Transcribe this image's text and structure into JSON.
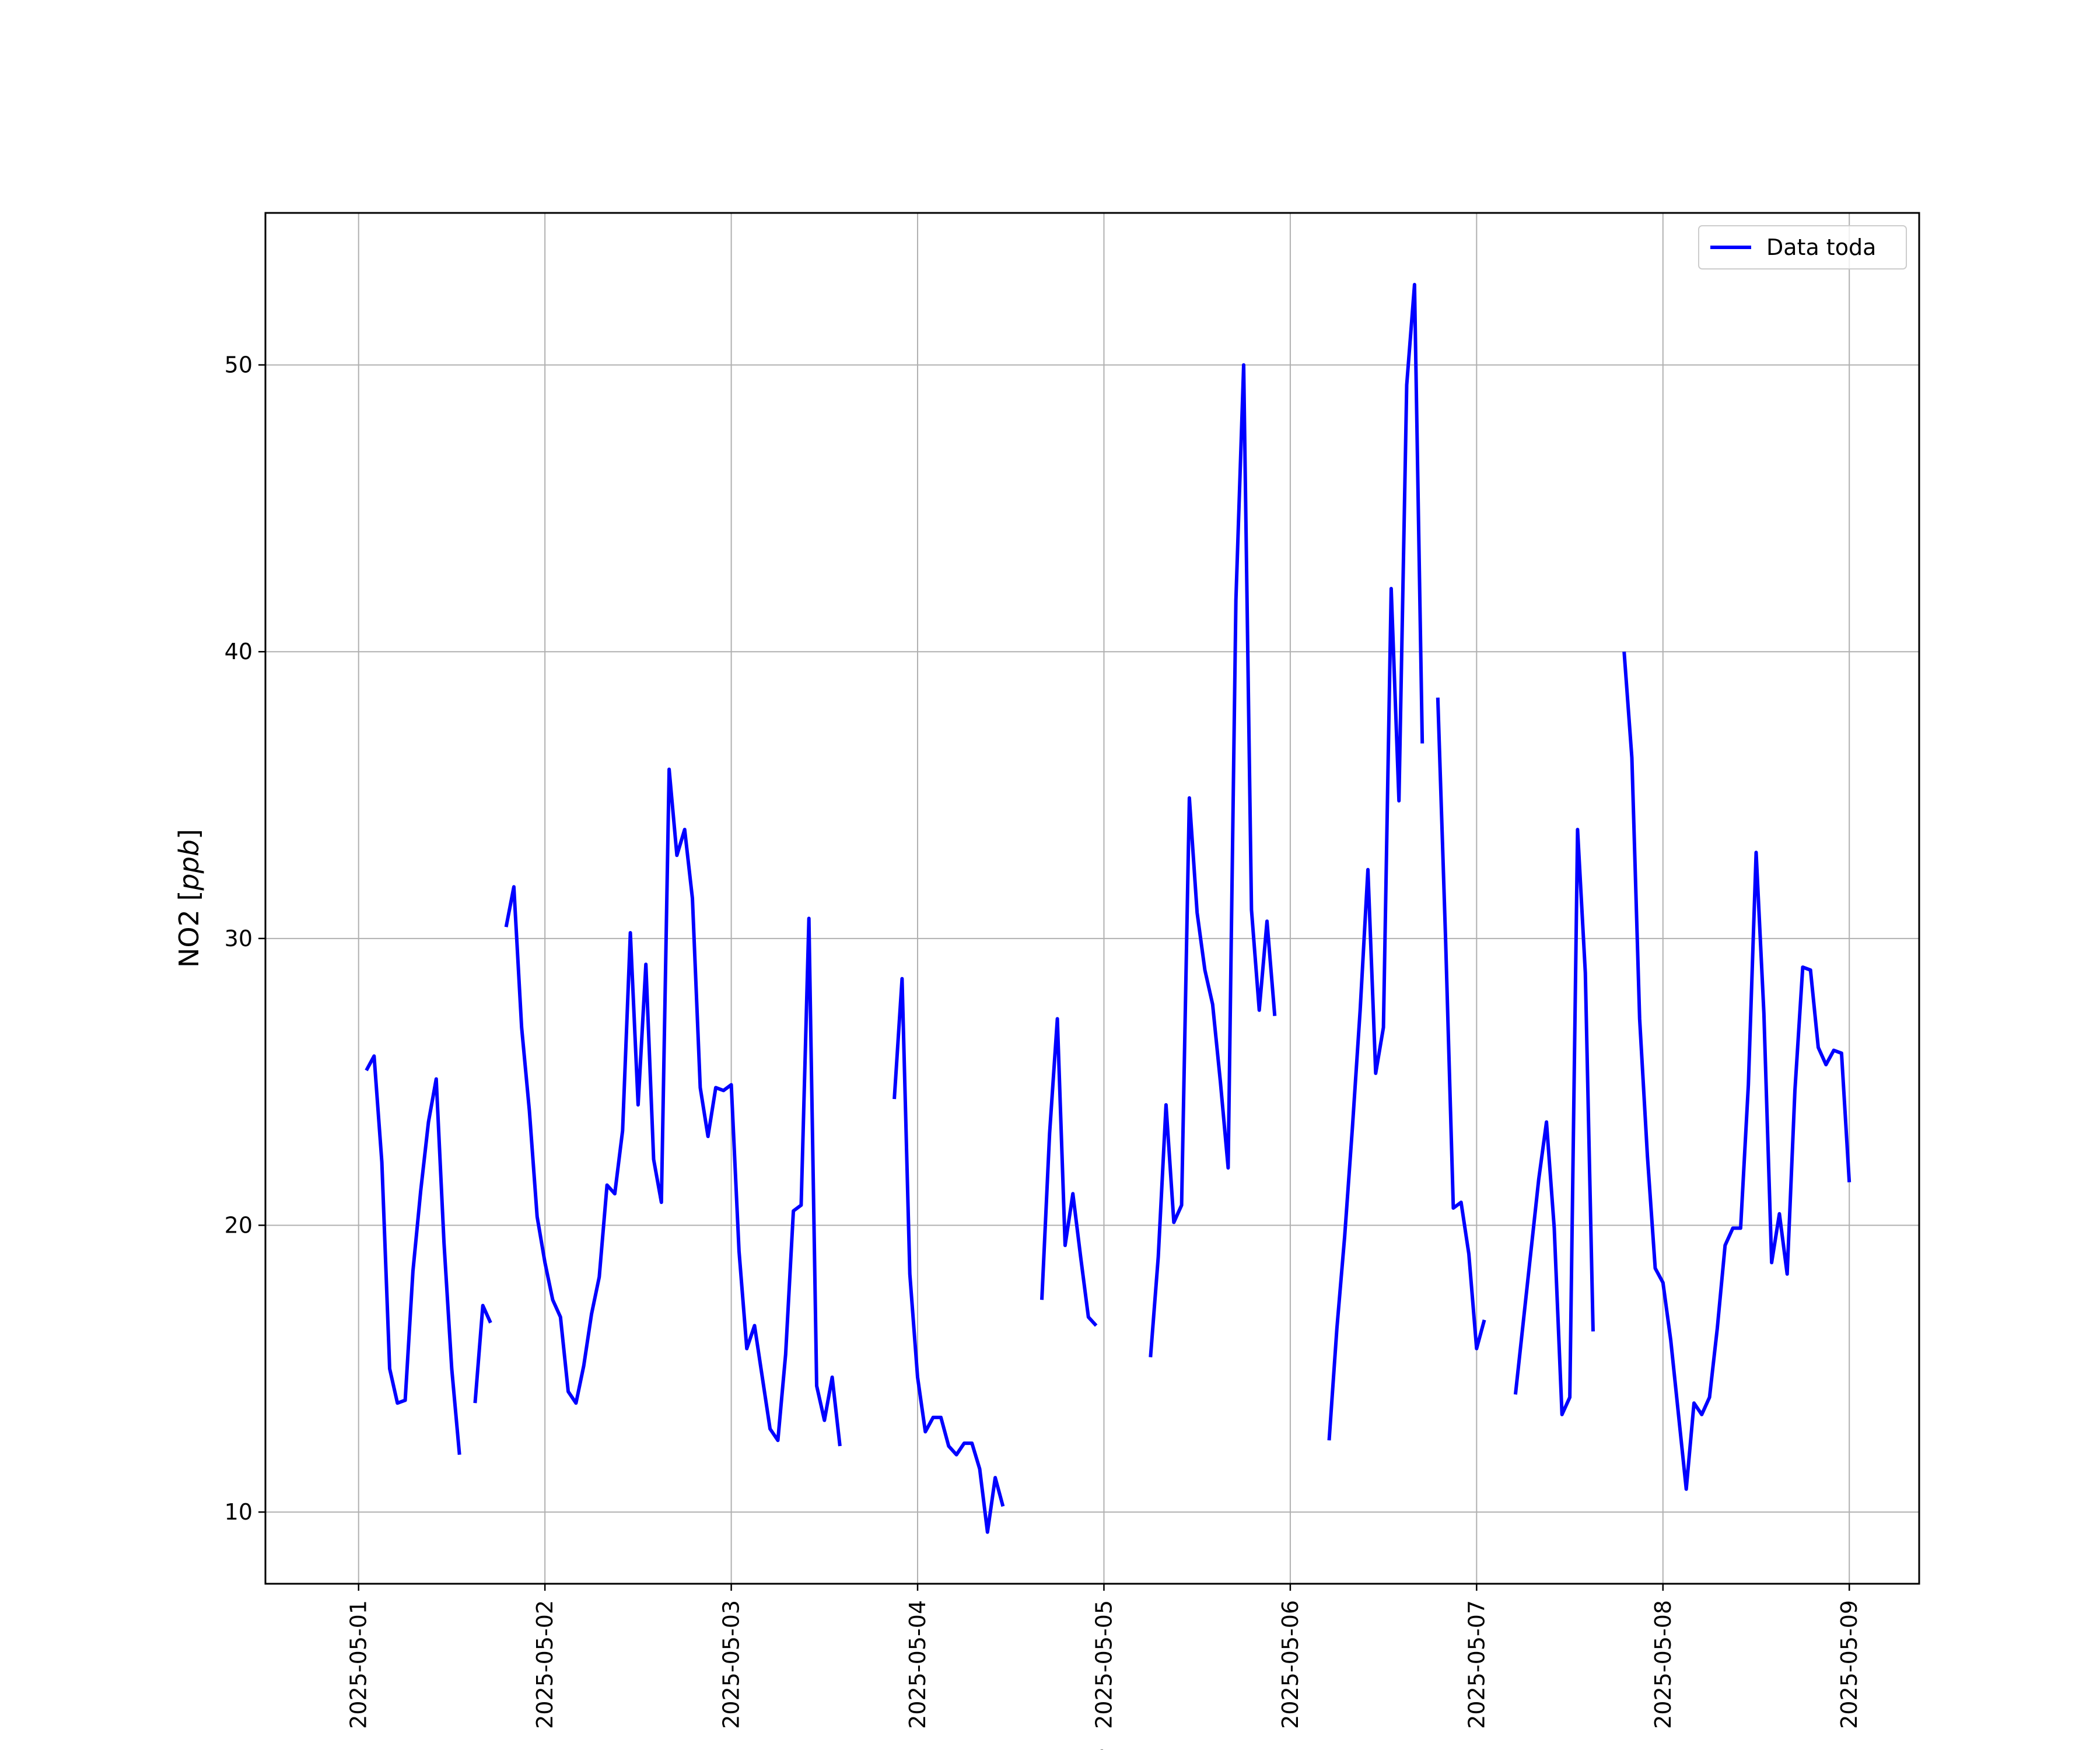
{
  "chart_data": {
    "type": "line",
    "title": "",
    "xlabel": "Fecha",
    "ylabel": "NO2 [ppb]",
    "ylabel_parts": {
      "plain": "NO2 [",
      "italic": "ppb",
      "close": "]"
    },
    "x_ticks": [
      "2025-05-01",
      "2025-05-02",
      "2025-05-03",
      "2025-05-04",
      "2025-05-05",
      "2025-05-06",
      "2025-05-07",
      "2025-05-08",
      "2025-05-09"
    ],
    "y_ticks": [
      10,
      20,
      30,
      40,
      50
    ],
    "xlim": [
      "2025-04-30T12:00",
      "2025-05-09T09:00"
    ],
    "ylim": [
      7.5,
      55.3
    ],
    "grid": true,
    "legend": {
      "position": "top-right",
      "entries": [
        "Data toda"
      ]
    },
    "series": [
      {
        "name": "Data toda",
        "color": "#0000ff",
        "time_step_hours": 1,
        "segments": [
          {
            "start": "2025-05-01T01:00",
            "values": [
              25.4,
              25.9,
              22.2,
              15.0,
              13.8,
              13.9,
              18.4,
              21.2,
              23.6,
              25.1,
              19.4,
              15.0,
              12.0
            ]
          },
          {
            "start": "2025-05-01T15:00",
            "values": [
              13.8,
              17.2,
              16.6
            ]
          },
          {
            "start": "2025-05-01T19:00",
            "values": [
              30.4,
              31.8,
              26.9,
              24.0,
              20.3,
              18.7,
              17.4,
              16.8,
              14.2,
              13.8,
              15.1,
              16.9,
              18.2,
              21.4,
              21.1,
              23.3,
              30.2,
              24.2,
              29.1,
              22.3,
              20.8,
              35.9,
              32.9,
              33.8,
              31.4,
              24.8,
              23.1,
              24.8,
              24.7,
              24.9,
              19.1,
              15.7,
              16.5,
              14.7,
              12.9,
              12.5,
              15.5,
              20.5,
              20.7,
              30.7,
              14.4,
              13.2,
              14.7,
              12.3
            ]
          },
          {
            "start": "2025-05-03T21:00",
            "values": [
              24.4,
              28.6,
              18.3,
              14.7,
              12.8,
              13.3,
              13.3,
              12.3,
              12.0,
              12.4,
              12.4,
              11.5,
              9.3,
              11.2,
              10.2
            ]
          },
          {
            "start": "2025-05-04T16:00",
            "values": [
              17.4,
              23.2,
              27.2,
              19.3,
              21.1,
              18.9,
              16.8,
              16.5
            ]
          },
          {
            "start": "2025-05-05T06:00",
            "values": [
              15.4,
              18.9,
              24.2,
              20.1,
              20.7,
              34.9,
              30.9,
              28.9,
              27.7,
              25.0,
              22.0,
              41.8,
              50.0,
              31.0,
              27.5,
              30.6,
              27.3
            ]
          },
          {
            "start": "2025-05-06T05:00",
            "values": [
              12.5,
              16.4,
              19.6,
              23.4,
              27.5,
              32.4,
              25.3,
              26.9,
              42.2,
              34.8,
              49.3,
              52.8,
              36.8
            ]
          },
          {
            "start": "2025-05-06T19:00",
            "values": [
              38.4,
              30.0,
              20.6,
              20.8,
              19.0,
              15.7,
              16.7
            ]
          },
          {
            "start": "2025-05-07T05:00",
            "values": [
              14.1,
              16.6,
              19.1,
              21.6,
              23.6,
              19.9,
              13.4,
              14.0,
              33.8,
              28.8,
              16.3
            ]
          },
          {
            "start": "2025-05-07T19:00",
            "values": [
              40.0,
              36.3,
              27.2,
              22.4,
              18.5,
              18.0,
              16.0,
              13.4,
              10.8,
              13.8,
              13.4,
              14.0,
              16.4,
              19.3,
              19.9,
              19.9,
              24.9,
              33.0,
              27.4,
              18.7,
              20.4,
              18.3,
              24.7,
              29.0,
              28.9,
              26.2,
              25.6,
              26.1,
              26.0,
              21.5
            ]
          }
        ]
      }
    ]
  }
}
